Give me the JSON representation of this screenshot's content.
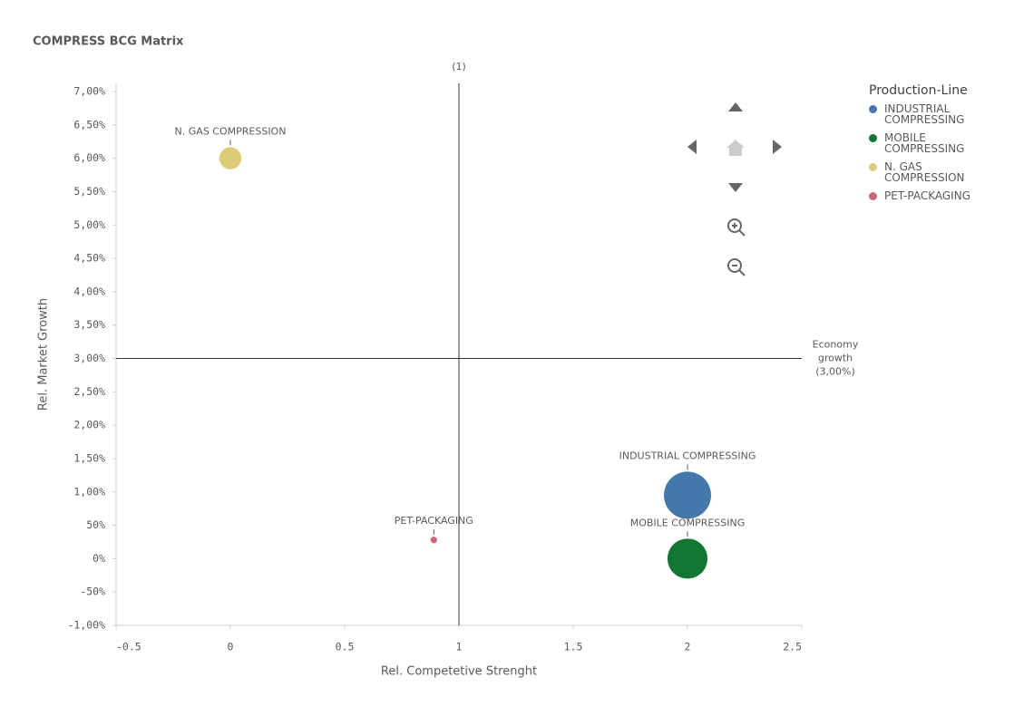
{
  "chart_data": {
    "type": "bubble",
    "title": "COMPRESS BCG Matrix",
    "x_label": "Rel. Competetive Strenght",
    "y_label": "Rel. Market Growth",
    "xlim": [
      -0.5,
      2.5
    ],
    "xticks": [
      -0.5,
      0,
      0.5,
      1,
      1.5,
      2,
      2.5
    ],
    "ylim": [
      -1,
      7
    ],
    "yticks": [
      {
        "value": 7,
        "label": "7,00%"
      },
      {
        "value": 6.5,
        "label": "6,50%"
      },
      {
        "value": 6,
        "label": "6,00%"
      },
      {
        "value": 5.5,
        "label": "5,50%"
      },
      {
        "value": 5,
        "label": "5,00%"
      },
      {
        "value": 4.5,
        "label": "4,50%"
      },
      {
        "value": 4,
        "label": "4,00%"
      },
      {
        "value": 3.5,
        "label": "3,50%"
      },
      {
        "value": 3,
        "label": "3,00%"
      },
      {
        "value": 2.5,
        "label": "2,50%"
      },
      {
        "value": 2,
        "label": "2,00%"
      },
      {
        "value": 1.5,
        "label": "1,50%"
      },
      {
        "value": 1,
        "label": "1,00%"
      },
      {
        "value": 0.5,
        "label": "50%"
      },
      {
        "value": 0,
        "label": "0%"
      },
      {
        "value": -0.5,
        "label": "-50%"
      },
      {
        "value": -1,
        "label": "-1,00%"
      }
    ],
    "reference_lines": {
      "x": {
        "value": 1,
        "label": "(1)"
      },
      "y": {
        "value": 3,
        "label": [
          "Economy",
          "growth",
          "(3,00%)"
        ]
      }
    },
    "legend_title": "Production-Line",
    "series": [
      {
        "name": "INDUSTRIAL COMPRESSING",
        "color": "#4477aa",
        "x": [
          2
        ],
        "values": [
          0.95
        ],
        "sizes": [
          100
        ]
      },
      {
        "name": "MOBILE COMPRESSING",
        "color": "#117733",
        "x": [
          2
        ],
        "values": [
          0
        ],
        "sizes": [
          72
        ]
      },
      {
        "name": "N. GAS COMPRESSION",
        "color": "#ddcc77",
        "x": [
          0
        ],
        "values": [
          6
        ],
        "sizes": [
          22
        ]
      },
      {
        "name": "PET-PACKAGING",
        "color": "#cc6677",
        "x": [
          0.89
        ],
        "values": [
          0.28
        ],
        "sizes": [
          2
        ]
      }
    ]
  }
}
